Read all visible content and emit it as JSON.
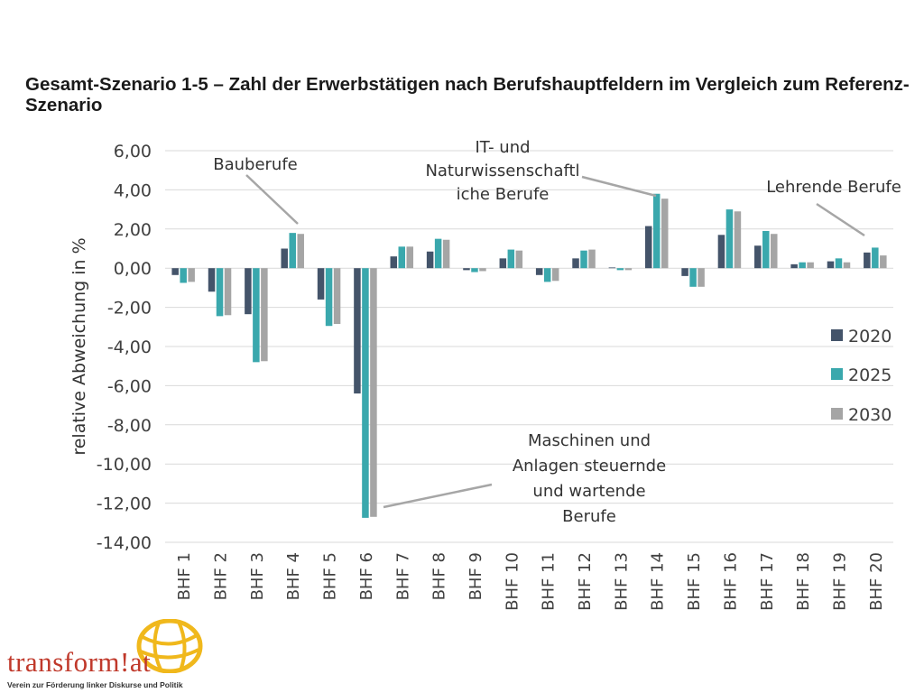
{
  "title": "Gesamt-Szenario 1-5 – Zahl der Erwerbstätigen nach Berufshauptfeldern im Vergleich zum Referenz-Szenario",
  "logo": {
    "name": "transform!at",
    "tagline": "Verein zur Förderung linker Diskurse und Politik"
  },
  "colors": {
    "2020": "#44546a",
    "2025": "#3aa8ad",
    "2030": "#a5a5a5",
    "logo_red": "#c0392b",
    "logo_yellow": "#f0b81c"
  },
  "chart_data": {
    "type": "bar",
    "ylabel": "relative Abweichung in %",
    "xlabel": "",
    "ylim": [
      -14,
      6
    ],
    "yticks": [
      "6,00",
      "4,00",
      "2,00",
      "0,00",
      "-2,00",
      "-4,00",
      "-6,00",
      "-8,00",
      "-10,00",
      "-12,00",
      "-14,00"
    ],
    "grid": true,
    "legend_position": "right",
    "categories": [
      "BHF 1",
      "BHF 2",
      "BHF 3",
      "BHF 4",
      "BHF 5",
      "BHF 6",
      "BHF 7",
      "BHF 8",
      "BHF 9",
      "BHF 10",
      "BHF 11",
      "BHF 12",
      "BHF 13",
      "BHF 14",
      "BHF 15",
      "BHF 16",
      "BHF 17",
      "BHF 18",
      "BHF 19",
      "BHF 20"
    ],
    "series": [
      {
        "name": "2020",
        "values": [
          -0.35,
          -1.2,
          -2.35,
          1.0,
          -1.6,
          -6.4,
          0.6,
          0.85,
          -0.1,
          0.5,
          -0.35,
          0.5,
          0.0,
          2.15,
          -0.4,
          1.7,
          1.15,
          0.2,
          0.35,
          0.8
        ]
      },
      {
        "name": "2025",
        "values": [
          -0.75,
          -2.45,
          -4.8,
          1.8,
          -2.95,
          -12.75,
          1.1,
          1.5,
          -0.2,
          0.95,
          -0.7,
          0.9,
          -0.1,
          3.8,
          -0.95,
          3.0,
          1.9,
          0.3,
          0.5,
          1.05
        ]
      },
      {
        "name": "2030",
        "values": [
          -0.7,
          -2.4,
          -4.75,
          1.75,
          -2.85,
          -12.7,
          1.1,
          1.45,
          -0.15,
          0.9,
          -0.65,
          0.95,
          -0.1,
          3.55,
          -0.95,
          2.9,
          1.75,
          0.3,
          0.3,
          0.65
        ]
      }
    ],
    "annotations": [
      {
        "lines": [
          "Bauberufe"
        ]
      },
      {
        "lines": [
          "IT- und",
          "Naturwissenschaftl",
          "iche Berufe"
        ]
      },
      {
        "lines": [
          "Lehrende Berufe"
        ]
      },
      {
        "lines": [
          "Maschinen und",
          "Anlagen steuernde",
          "und wartende",
          "Berufe"
        ]
      }
    ]
  }
}
